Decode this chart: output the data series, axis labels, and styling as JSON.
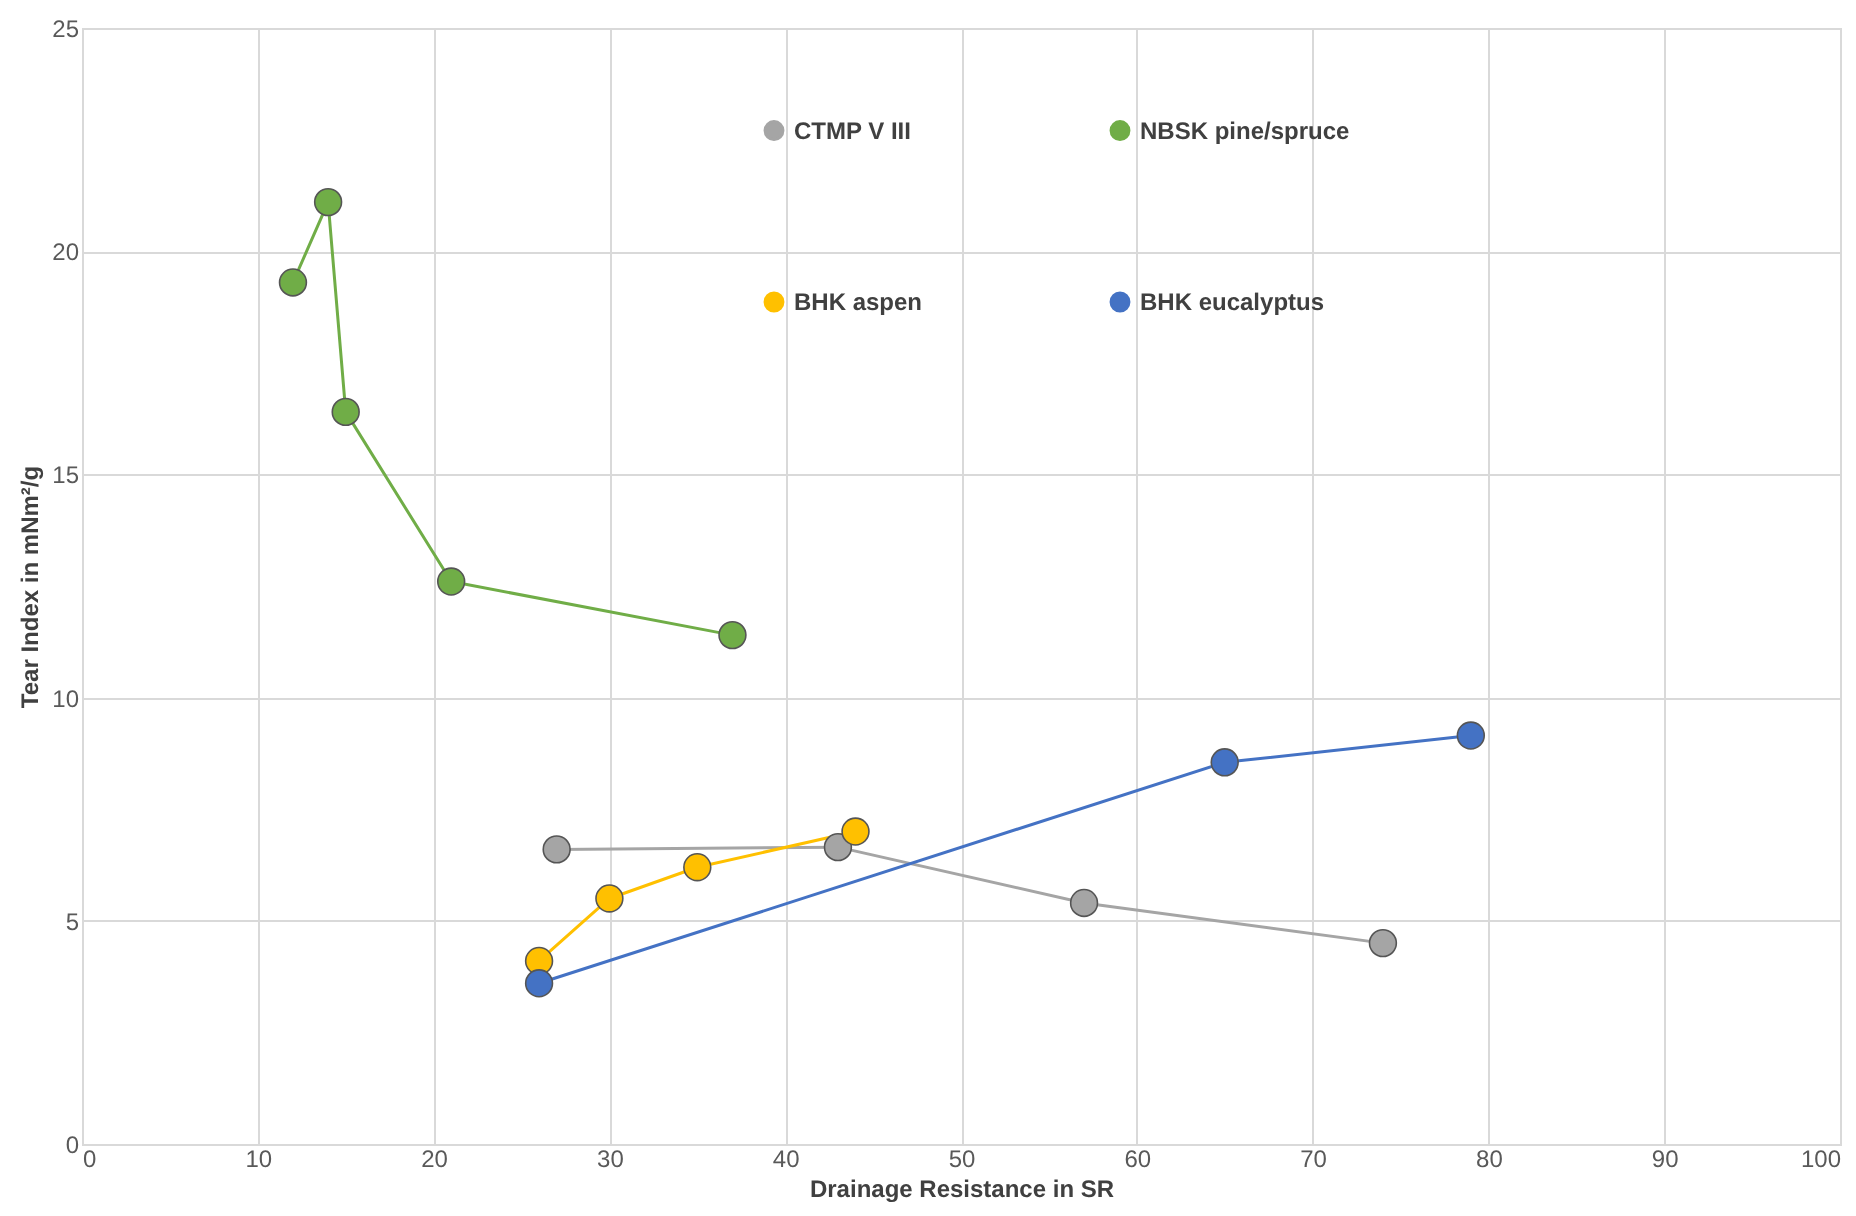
{
  "chart_data": {
    "type": "line",
    "xlabel": "Drainage Resistance in SR",
    "ylabel": "Tear Index in mNm²/g",
    "xlim": [
      0,
      100
    ],
    "xticks": [
      0,
      10,
      20,
      30,
      40,
      50,
      60,
      70,
      80,
      90,
      100
    ],
    "ylim": [
      0,
      25
    ],
    "yticks": [
      0,
      5,
      10,
      15,
      20,
      25
    ],
    "grid": true,
    "legend": "top right",
    "marker": "circle",
    "line_style": "solid",
    "series": [
      {
        "name": "CTMP V III",
        "color": "#a5a5a5",
        "x": [
          27,
          43,
          57,
          74
        ],
        "values": [
          6.6,
          6.65,
          5.4,
          4.5
        ]
      },
      {
        "name": "NBSK pine/spruce",
        "color": "#70ad47",
        "x": [
          12,
          14,
          15,
          21,
          37
        ],
        "values": [
          19.3,
          21.1,
          16.4,
          12.6,
          11.4
        ]
      },
      {
        "name": "BHK aspen",
        "color": "#ffc000",
        "x": [
          26,
          30,
          35,
          44
        ],
        "values": [
          4.1,
          5.5,
          6.2,
          7.0
        ]
      },
      {
        "name": "BHK eucalyptus",
        "color": "#4472c4",
        "x": [
          26,
          65,
          79
        ],
        "values": [
          3.6,
          8.55,
          9.15
        ]
      }
    ]
  }
}
